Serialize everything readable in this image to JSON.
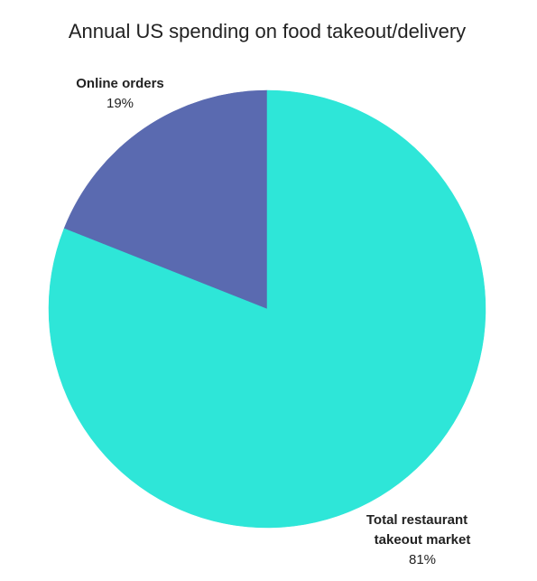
{
  "chart_data": {
    "type": "pie",
    "title": "Annual US spending on food takeout/delivery",
    "slices": [
      {
        "label_lines": [
          "Online orders"
        ],
        "value": 19,
        "value_label": "19%",
        "color": "#5a6ab0"
      },
      {
        "label_lines": [
          "Total restaurant",
          "takeout market"
        ],
        "value": 81,
        "value_label": "81%",
        "color": "#2ee6d8"
      }
    ],
    "legend": "none"
  }
}
